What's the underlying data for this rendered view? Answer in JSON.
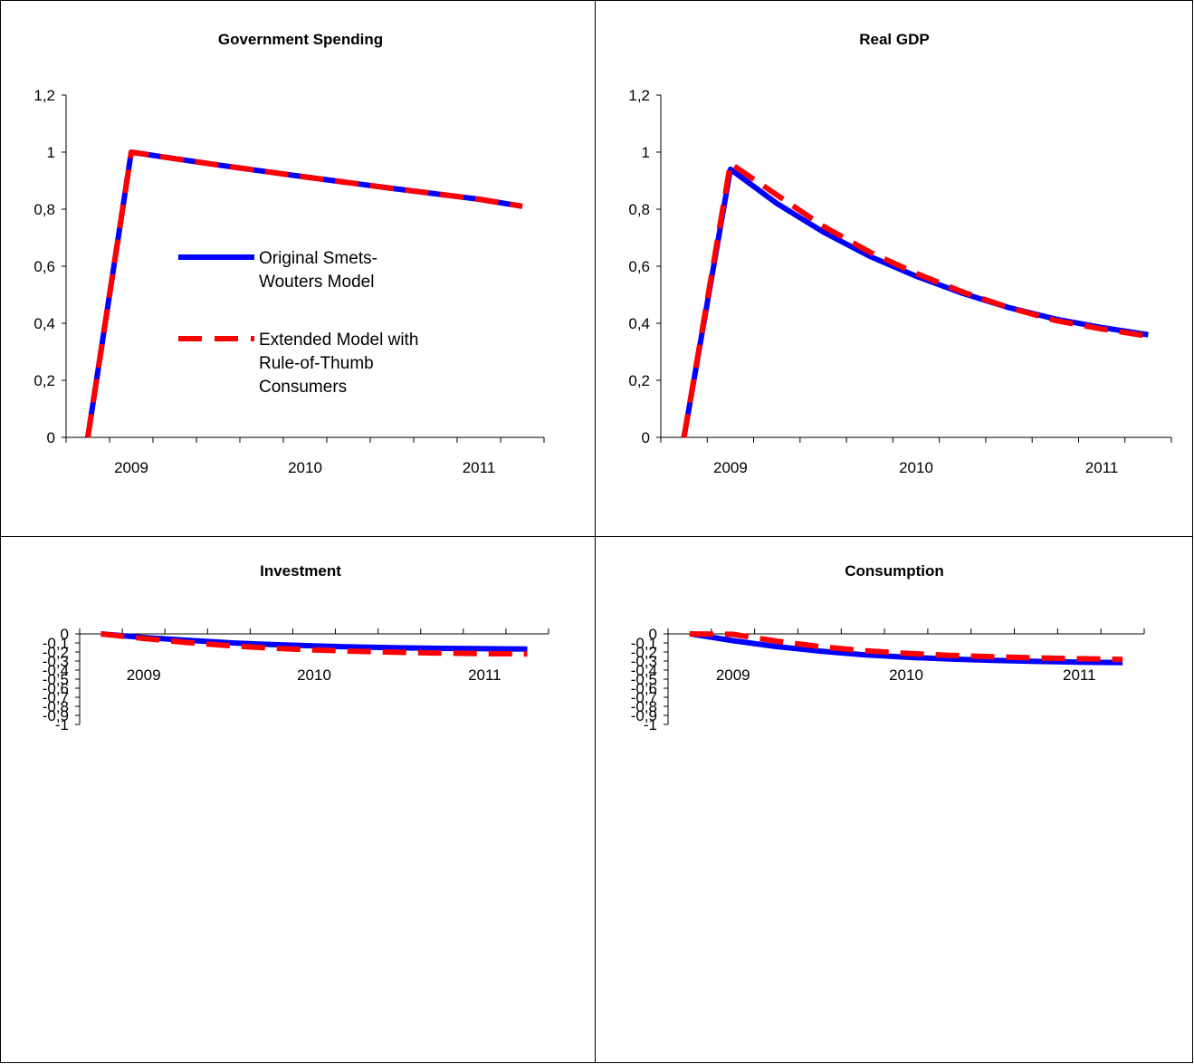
{
  "charts": [
    {
      "title": "Government Spending",
      "type": "line",
      "x": [
        "",
        "2009",
        "",
        "",
        "",
        "2010",
        "",
        "",
        "",
        "2011",
        ""
      ],
      "xtick_labels": [
        "2009",
        "2010",
        "2011"
      ],
      "ylim": [
        0,
        1.2
      ],
      "yticks": [
        "0",
        "0,2",
        "0,4",
        "0,6",
        "0,8",
        "1",
        "1,2"
      ],
      "series": [
        {
          "name": "Original Smets-Wouters Model",
          "color": "#0000ff",
          "style": "solid",
          "values": [
            0,
            1.0,
            0.977,
            0.955,
            0.934,
            0.913,
            0.893,
            0.873,
            0.854,
            0.835,
            0.81
          ]
        },
        {
          "name": "Extended Model with Rule-of-Thumb Consumers",
          "color": "#ff0000",
          "style": "dashed",
          "values": [
            0,
            1.0,
            0.977,
            0.955,
            0.934,
            0.913,
            0.893,
            0.873,
            0.854,
            0.835,
            0.81
          ]
        }
      ]
    },
    {
      "title": "Real GDP",
      "type": "line",
      "x": [
        "",
        "2009",
        "",
        "",
        "",
        "2010",
        "",
        "",
        "",
        "2011",
        ""
      ],
      "xtick_labels": [
        "2009",
        "2010",
        "2011"
      ],
      "ylim": [
        0,
        1.2
      ],
      "yticks": [
        "0",
        "0,2",
        "0,4",
        "0,6",
        "0,8",
        "1",
        "1,2"
      ],
      "series": [
        {
          "name": "Original Smets-Wouters Model",
          "color": "#0000ff",
          "style": "solid",
          "values": [
            0,
            0.94,
            0.82,
            0.72,
            0.635,
            0.565,
            0.505,
            0.455,
            0.415,
            0.385,
            0.36
          ]
        },
        {
          "name": "Extended Model with Rule-of-Thumb Consumers",
          "color": "#ff0000",
          "style": "dashed",
          "values": [
            0,
            0.96,
            0.85,
            0.74,
            0.65,
            0.575,
            0.51,
            0.455,
            0.41,
            0.38,
            0.355
          ]
        }
      ]
    },
    {
      "title": "Investment",
      "type": "line",
      "x": [
        "",
        "2009",
        "",
        "",
        "",
        "2010",
        "",
        "",
        "",
        "2011",
        ""
      ],
      "xtick_labels": [
        "2009",
        "2010",
        "2011"
      ],
      "ylim": [
        -1,
        0
      ],
      "yticks": [
        "-1",
        "-0,9",
        "-0,8",
        "-0,7",
        "-0,6",
        "-0,5",
        "-0,4",
        "-0,3",
        "-0,2",
        "-0,1",
        "0"
      ],
      "series": [
        {
          "name": "Original Smets-Wouters Model",
          "color": "#0000ff",
          "style": "solid",
          "values": [
            0,
            -0.04,
            -0.07,
            -0.098,
            -0.118,
            -0.133,
            -0.145,
            -0.154,
            -0.16,
            -0.164,
            -0.167
          ]
        },
        {
          "name": "Extended Model with Rule-of-Thumb Consumers",
          "color": "#ff0000",
          "style": "dashed",
          "values": [
            0,
            -0.05,
            -0.095,
            -0.13,
            -0.158,
            -0.178,
            -0.193,
            -0.204,
            -0.212,
            -0.218,
            -0.222
          ]
        }
      ]
    },
    {
      "title": "Consumption",
      "type": "line",
      "x": [
        "",
        "2009",
        "",
        "",
        "",
        "2010",
        "",
        "",
        "",
        "2011",
        ""
      ],
      "xtick_labels": [
        "2009",
        "2010",
        "2011"
      ],
      "ylim": [
        -1,
        0
      ],
      "yticks": [
        "-1",
        "-0,9",
        "-0,8",
        "-0,7",
        "-0,6",
        "-0,5",
        "-0,4",
        "-0,3",
        "-0,2",
        "-0,1",
        "0"
      ],
      "series": [
        {
          "name": "Original Smets-Wouters Model",
          "color": "#0000ff",
          "style": "solid",
          "values": [
            0,
            -0.075,
            -0.14,
            -0.19,
            -0.23,
            -0.258,
            -0.278,
            -0.293,
            -0.304,
            -0.312,
            -0.318
          ]
        },
        {
          "name": "Extended Model with Rule-of-Thumb Consumers",
          "color": "#ff0000",
          "style": "dashed",
          "values": [
            0,
            -0.005,
            -0.08,
            -0.14,
            -0.185,
            -0.215,
            -0.237,
            -0.253,
            -0.265,
            -0.274,
            -0.282
          ]
        }
      ]
    }
  ],
  "legend": {
    "panel": 0,
    "entries": [
      {
        "lines": [
          "Original Smets-",
          "Wouters Model"
        ],
        "color": "#0000ff",
        "style": "solid"
      },
      {
        "lines": [
          "Extended Model with",
          "Rule-of-Thumb",
          "Consumers"
        ],
        "color": "#ff0000",
        "style": "dashed"
      }
    ]
  }
}
